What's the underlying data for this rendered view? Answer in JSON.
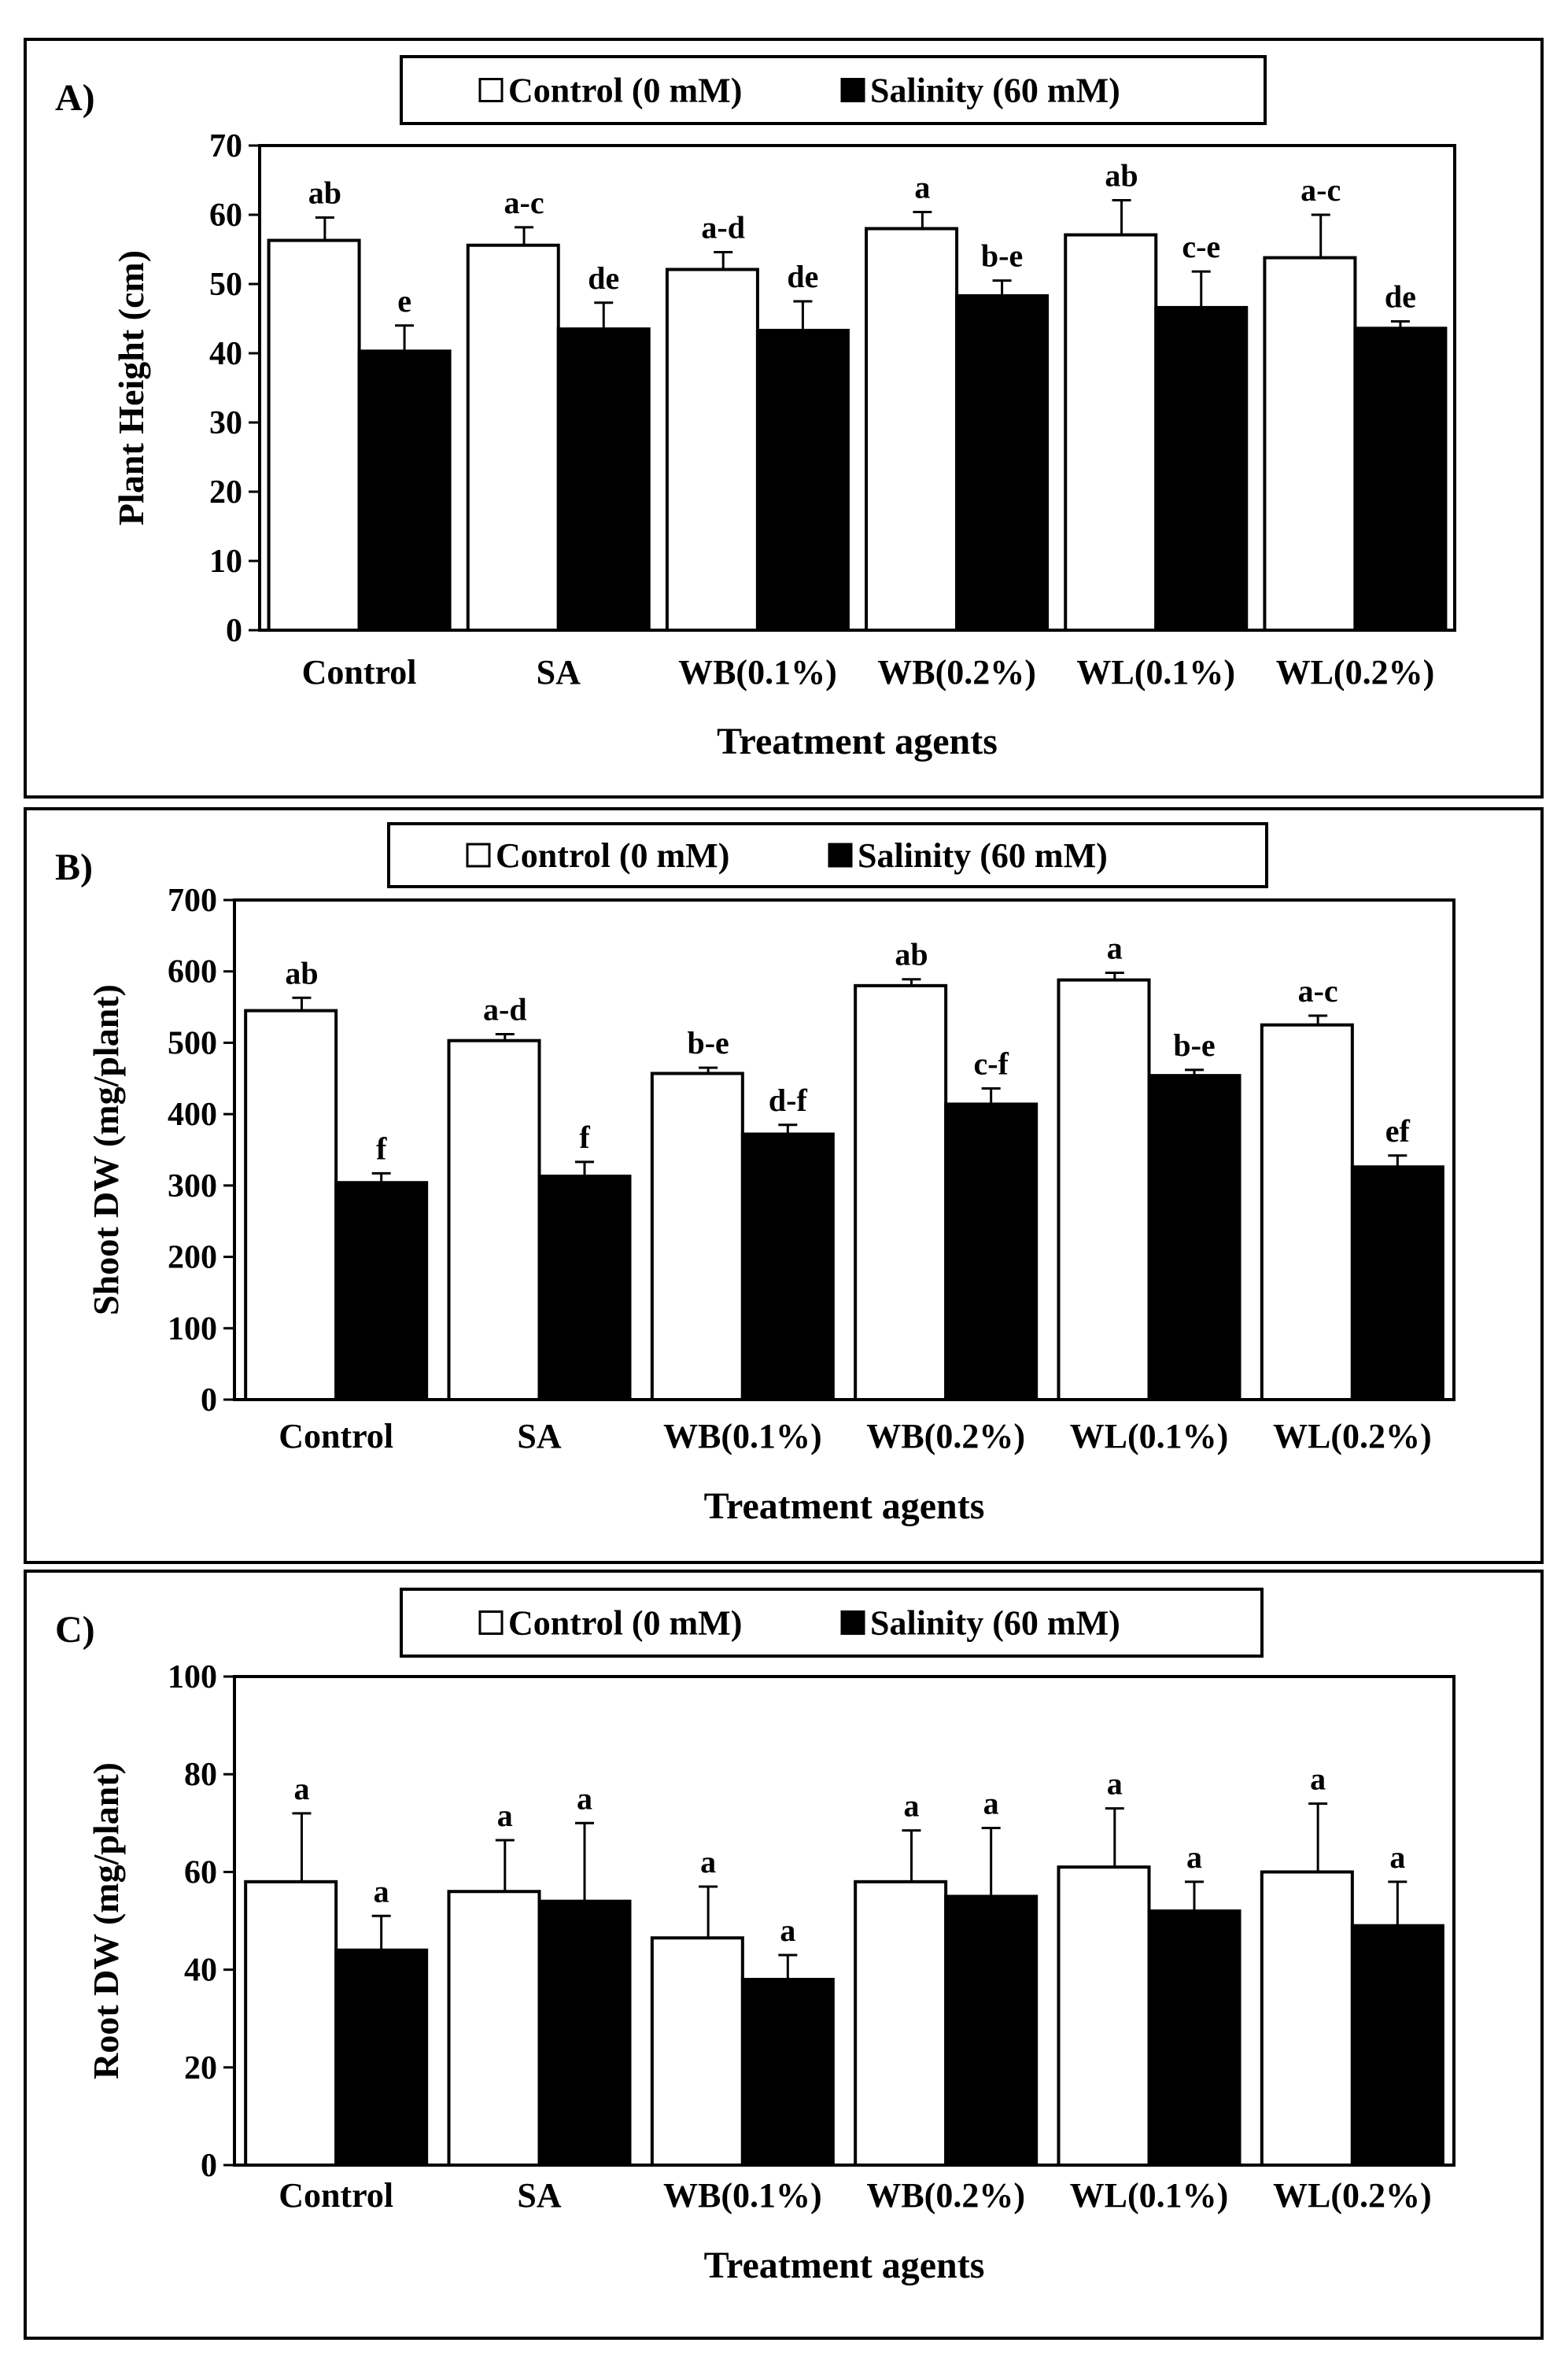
{
  "chart_data": [
    {
      "type": "bar",
      "panel_label": "A)",
      "ylabel": "Plant Height (cm)",
      "xlabel": "Treatment agents",
      "categories": [
        "Control",
        "SA",
        "WB(0.1%)",
        "WB(0.2%)",
        "WL(0.1%)",
        "WL(0.2%)"
      ],
      "ylim": [
        0,
        70
      ],
      "yticks": [
        0,
        10,
        20,
        30,
        40,
        50,
        60,
        70
      ],
      "legend_placement": "top-center",
      "series": [
        {
          "name": "Control (0 mM)",
          "values": [
            56.3,
            55.6,
            52.1,
            58.0,
            57.1,
            53.8
          ],
          "errors": [
            3.3,
            2.6,
            2.5,
            2.4,
            5.0,
            6.2
          ],
          "letters": [
            "ab",
            "a-c",
            "a-d",
            "a",
            "ab",
            "a-c"
          ]
        },
        {
          "name": "Salinity (60 mM)",
          "values": [
            40.3,
            43.5,
            43.3,
            48.3,
            46.6,
            43.6
          ],
          "errors": [
            3.7,
            3.8,
            4.2,
            2.2,
            5.2,
            1.0
          ],
          "letters": [
            "e",
            "de",
            "de",
            "b-e",
            "c-e",
            "de"
          ]
        }
      ]
    },
    {
      "type": "bar",
      "panel_label": "B)",
      "ylabel": "Shoot DW (mg/plant)",
      "xlabel": "Treatment agents",
      "categories": [
        "Control",
        "SA",
        "WB(0.1%)",
        "WB(0.2%)",
        "WL(0.1%)",
        "WL(0.2%)"
      ],
      "ylim": [
        0,
        700
      ],
      "yticks": [
        0,
        100,
        200,
        300,
        400,
        500,
        600,
        700
      ],
      "legend_placement": "top-center",
      "series": [
        {
          "name": "Control (0 mM)",
          "values": [
            545,
            503,
            457,
            580,
            588,
            525
          ],
          "errors": [
            18,
            9,
            8,
            9,
            10,
            13
          ],
          "letters": [
            "ab",
            "a-d",
            "b-e",
            "ab",
            "a",
            "a-c"
          ]
        },
        {
          "name": "Salinity (60 mM)",
          "values": [
            304,
            313,
            372,
            414,
            454,
            326
          ],
          "errors": [
            13,
            20,
            13,
            22,
            8,
            16
          ],
          "letters": [
            "f",
            "f",
            "d-f",
            "c-f",
            "b-e",
            "ef"
          ]
        }
      ]
    },
    {
      "type": "bar",
      "panel_label": "C)",
      "ylabel": "Root DW (mg/plant)",
      "xlabel": "Treatment agents",
      "categories": [
        "Control",
        "SA",
        "WB(0.1%)",
        "WB(0.2%)",
        "WL(0.1%)",
        "WL(0.2%)"
      ],
      "ylim": [
        0,
        100
      ],
      "yticks": [
        0,
        20,
        40,
        60,
        80,
        100
      ],
      "legend_placement": "top-center",
      "series": [
        {
          "name": "Control (0 mM)",
          "values": [
            58,
            56,
            46.5,
            58,
            61,
            60
          ],
          "errors": [
            14,
            10.5,
            10.5,
            10.5,
            12,
            14
          ],
          "letters": [
            "a",
            "a",
            "a",
            "a",
            "a",
            "a"
          ]
        },
        {
          "name": "Salinity (60 mM)",
          "values": [
            44,
            54,
            38,
            55,
            52,
            49
          ],
          "errors": [
            7,
            16,
            5,
            14,
            6,
            9
          ],
          "letters": [
            "a",
            "a",
            "a",
            "a",
            "a",
            "a"
          ]
        }
      ]
    }
  ]
}
